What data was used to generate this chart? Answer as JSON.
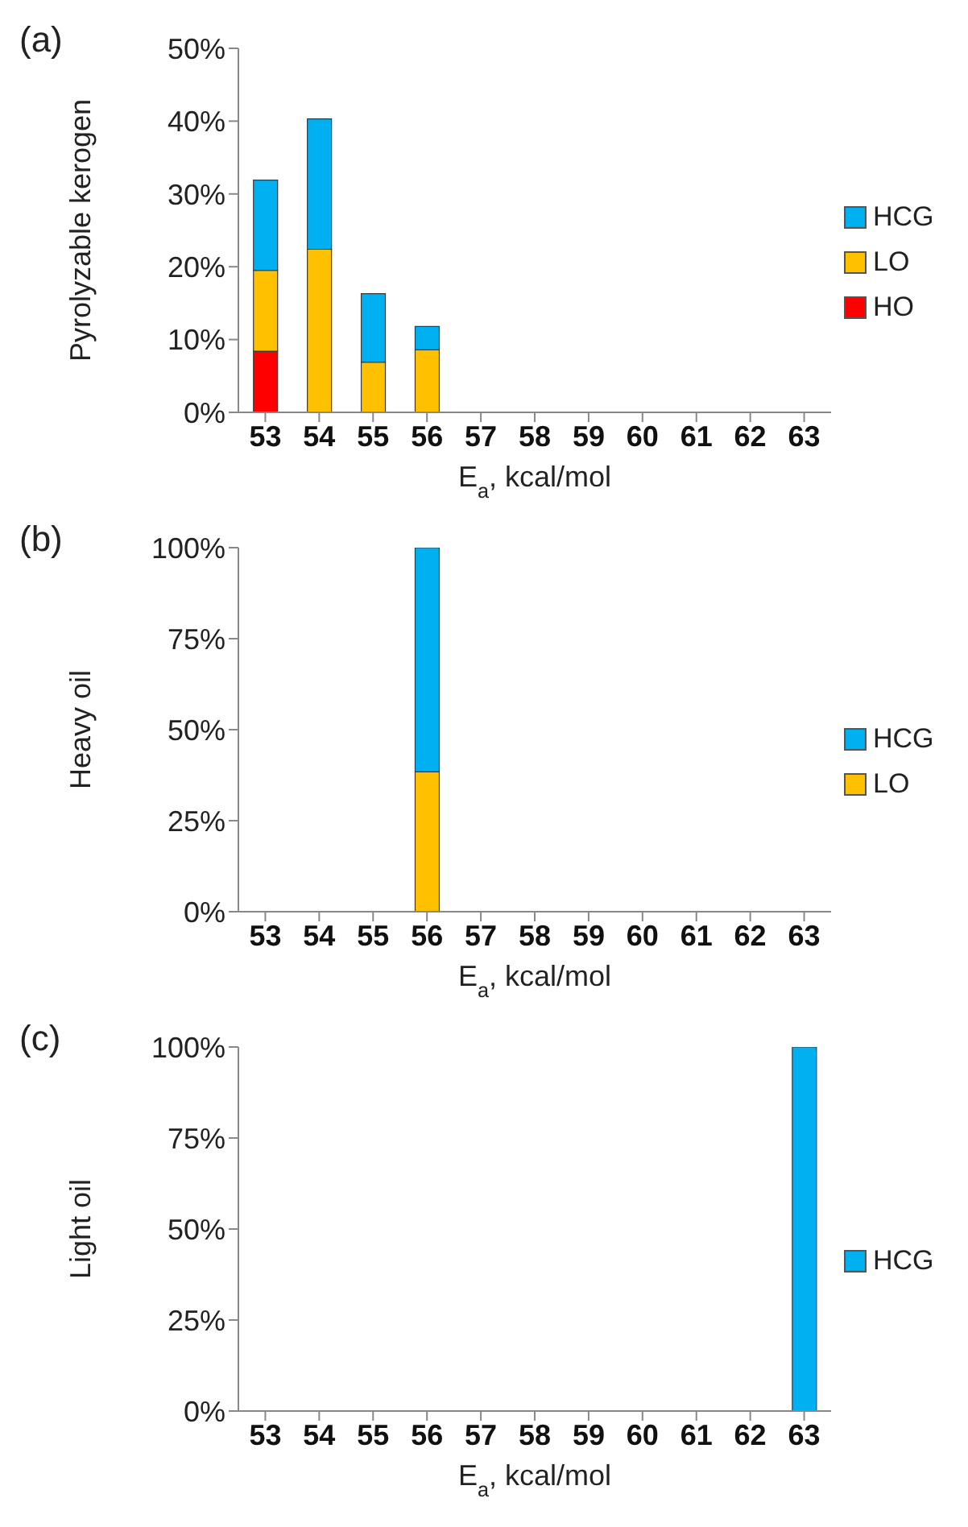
{
  "chart_data": [
    {
      "type": "bar",
      "title": "(a)",
      "xlabel": "E$_{a}$, kcal/mol",
      "ylabel": "Pyrolyzable kerogen",
      "stacked": true,
      "legend": "right",
      "grid": false,
      "categories": [
        "53",
        "54",
        "55",
        "56",
        "57",
        "58",
        "59",
        "60",
        "61",
        "62",
        "63"
      ],
      "ylim": [
        0,
        50
      ],
      "yticks": [
        {
          "value": 0,
          "label": "0%"
        },
        {
          "value": 10,
          "label": "10%"
        },
        {
          "value": 20,
          "label": "20%"
        },
        {
          "value": 30,
          "label": "30%"
        },
        {
          "value": 40,
          "label": "40%"
        },
        {
          "value": 50,
          "label": "50%"
        }
      ],
      "series": [
        {
          "name": "HO",
          "color": "#ff0000",
          "values": [
            8.4,
            0,
            0,
            0,
            0,
            0,
            0,
            0,
            0,
            0,
            0
          ]
        },
        {
          "name": "LO",
          "color": "#ffc000",
          "values": [
            11.1,
            22.4,
            6.9,
            8.6,
            0,
            0,
            0,
            0,
            0,
            0,
            0
          ]
        },
        {
          "name": "HCG",
          "color": "#00b0f0",
          "values": [
            12.4,
            17.9,
            9.4,
            3.2,
            0,
            0,
            0,
            0,
            0,
            0,
            0
          ]
        }
      ]
    },
    {
      "type": "bar",
      "title": "(b)",
      "xlabel": "E$_{a}$, kcal/mol",
      "ylabel": "Heavy oil",
      "stacked": true,
      "legend": "right",
      "grid": false,
      "categories": [
        "53",
        "54",
        "55",
        "56",
        "57",
        "58",
        "59",
        "60",
        "61",
        "62",
        "63"
      ],
      "ylim": [
        0,
        100
      ],
      "yticks": [
        {
          "value": 0,
          "label": "0%"
        },
        {
          "value": 25,
          "label": "25%"
        },
        {
          "value": 50,
          "label": "50%"
        },
        {
          "value": 75,
          "label": "75%"
        },
        {
          "value": 100,
          "label": "100%"
        }
      ],
      "series": [
        {
          "name": "LO",
          "color": "#ffc000",
          "values": [
            0,
            0,
            0,
            38.4,
            0,
            0,
            0,
            0,
            0,
            0,
            0
          ]
        },
        {
          "name": "HCG",
          "color": "#00b0f0",
          "values": [
            0,
            0,
            0,
            61.6,
            0,
            0,
            0,
            0,
            0,
            0,
            0
          ]
        }
      ]
    },
    {
      "type": "bar",
      "title": "(c)",
      "xlabel": "E$_{a}$, kcal/mol",
      "ylabel": "Light oil",
      "stacked": true,
      "legend": "right",
      "grid": false,
      "categories": [
        "53",
        "54",
        "55",
        "56",
        "57",
        "58",
        "59",
        "60",
        "61",
        "62",
        "63"
      ],
      "ylim": [
        0,
        100
      ],
      "yticks": [
        {
          "value": 0,
          "label": "0%"
        },
        {
          "value": 25,
          "label": "25%"
        },
        {
          "value": 50,
          "label": "50%"
        },
        {
          "value": 75,
          "label": "75%"
        },
        {
          "value": 100,
          "label": "100%"
        }
      ],
      "series": [
        {
          "name": "HCG",
          "color": "#00b0f0",
          "values": [
            0,
            0,
            0,
            0,
            0,
            0,
            0,
            0,
            0,
            0,
            100
          ]
        }
      ]
    }
  ]
}
